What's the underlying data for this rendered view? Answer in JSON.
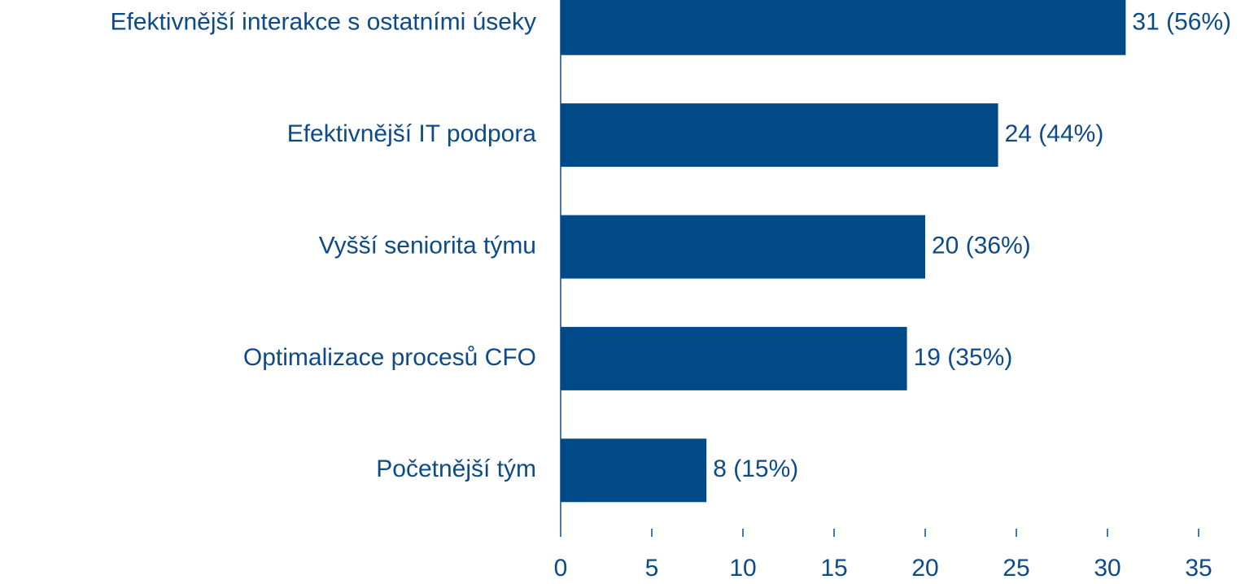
{
  "chart_data": {
    "type": "bar",
    "orientation": "horizontal",
    "categories": [
      "Efektivnější interakce s ostatními úseky",
      "Efektivnější IT podpora",
      "Vyšší seniorita týmu",
      "Optimalizace procesů CFO",
      "Početnější tým"
    ],
    "values": [
      31,
      24,
      20,
      19,
      8
    ],
    "value_labels": [
      "31 (56%)",
      "24 (44%)",
      "20 (36%)",
      "19 (35%)",
      "8 (15%)"
    ],
    "color": "#004a87",
    "xlim": [
      0,
      35
    ],
    "xticks": [
      0,
      5,
      10,
      15,
      20,
      25,
      30,
      35
    ],
    "grid": false
  }
}
